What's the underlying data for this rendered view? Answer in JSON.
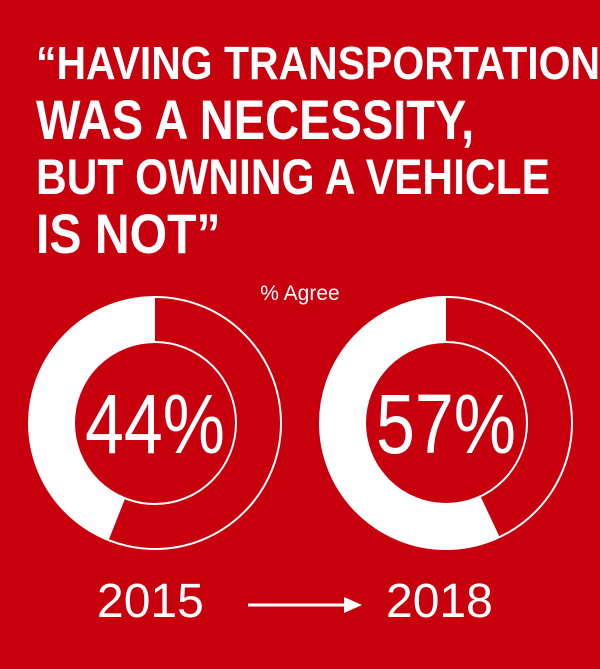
{
  "headline": {
    "line1": "“HAVING TRANSPORTATION",
    "line2": "WAS A NECESSITY,",
    "line3": "BUT OWNING A VEHICLE",
    "line4": "IS NOT”"
  },
  "chart_data": {
    "type": "pie",
    "title": "“HAVING TRANSPORTATION WAS A NECESSITY, BUT OWNING A VEHICLE IS NOT”",
    "subtitle": "% Agree",
    "unit": "%",
    "categories": [
      "2015",
      "2018"
    ],
    "values": [
      44,
      57
    ],
    "value_labels": [
      "44%",
      "57%"
    ],
    "transition_arrow": "right-arrow-icon"
  },
  "colors": {
    "background": "#c8000d",
    "ring_fill": "#ffffff",
    "text": "#ffffff"
  }
}
